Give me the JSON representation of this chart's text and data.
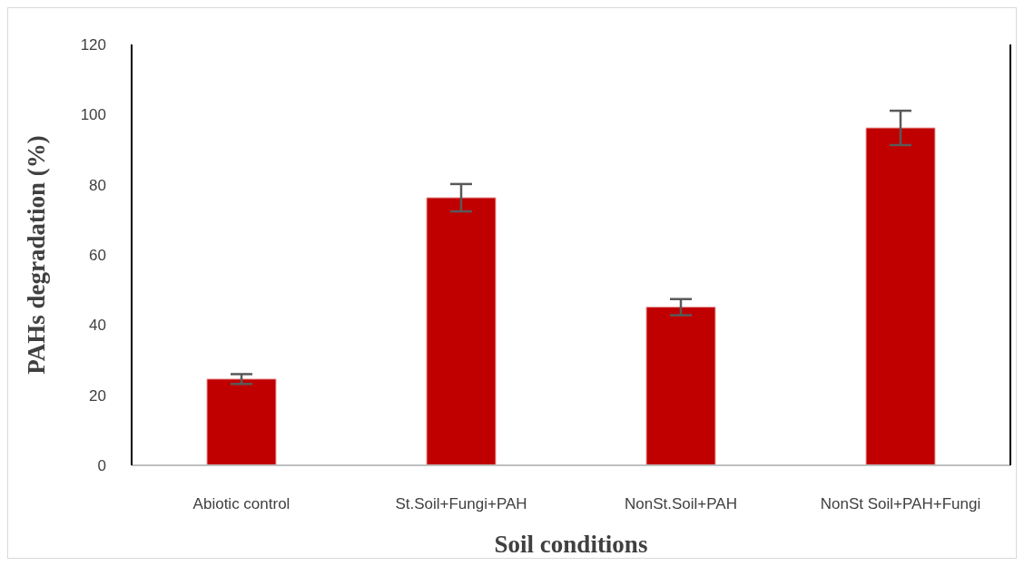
{
  "chart_data": {
    "type": "bar",
    "xlabel": "Soil conditions",
    "ylabel": "PAHs degradation (%)",
    "categories": [
      "Abiotic control",
      "St.Soil+Fungi+PAH",
      "NonSt.Soil+PAH",
      "NonSt Soil+PAH+Fungi"
    ],
    "values": [
      24.6,
      76.3,
      45.1,
      96.2
    ],
    "errors": [
      1.4,
      3.9,
      2.3,
      4.9
    ],
    "color": "#c00000",
    "ylim": [
      0,
      120
    ],
    "yticks": [
      0,
      20,
      40,
      60,
      80,
      100,
      120
    ],
    "grid": false,
    "legend": false
  }
}
